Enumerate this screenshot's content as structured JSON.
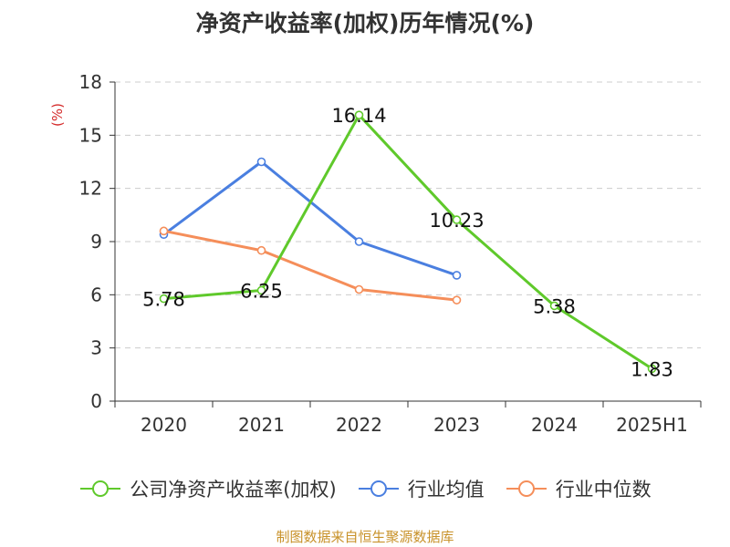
{
  "title": "净资产收益率(加权)历年情况(%)",
  "source": "制图数据来自恒生聚源数据库",
  "chart_data": {
    "type": "line",
    "title": "净资产收益率(加权)历年情况(%)",
    "ylabel": "(%)",
    "xlabel": "",
    "ylim": [
      0,
      18
    ],
    "yticks": [
      "0",
      "3",
      "6",
      "9",
      "12",
      "15",
      "18"
    ],
    "categories": [
      "2020",
      "2021",
      "2022",
      "2023",
      "2024",
      "2025H1"
    ],
    "grid": true,
    "legend": "bottom",
    "series": [
      {
        "name": "公司净资产收益率(加权)",
        "color": "#5fc92b",
        "values": [
          5.78,
          6.25,
          16.14,
          10.23,
          5.38,
          1.83
        ],
        "labels": [
          "5.78",
          "6.25",
          "16.14",
          "10.23",
          "5.38",
          "1.83"
        ]
      },
      {
        "name": "行业均值",
        "color": "#4a7fe0",
        "values": [
          9.4,
          13.5,
          9.0,
          7.1,
          null,
          null
        ]
      },
      {
        "name": "行业中位数",
        "color": "#f58e5a",
        "values": [
          9.6,
          8.5,
          6.3,
          5.7,
          null,
          null
        ]
      }
    ]
  }
}
